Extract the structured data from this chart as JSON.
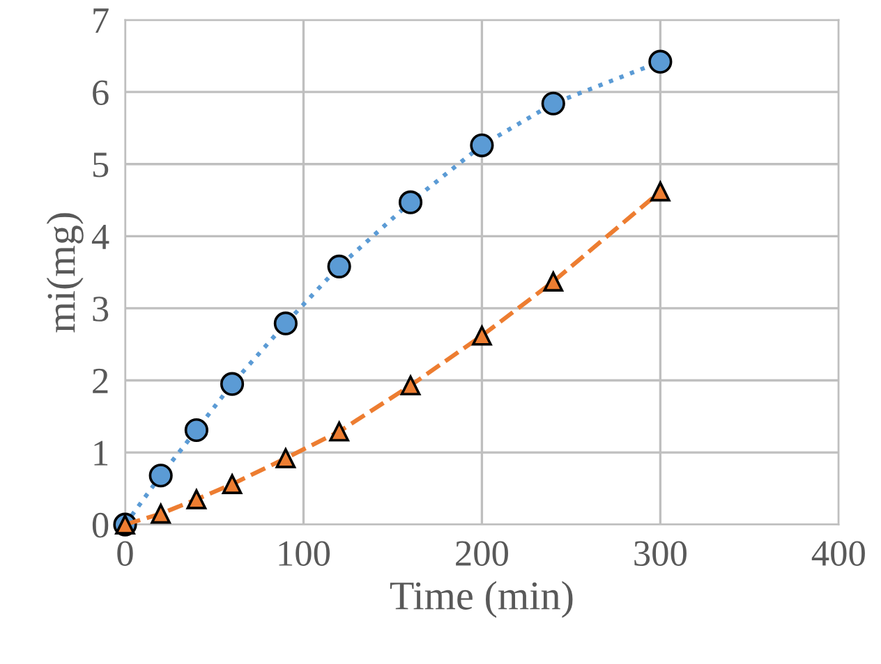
{
  "chart_data": {
    "type": "line",
    "xlabel": "Time (min)",
    "ylabel": "mi(mg)",
    "xlim": [
      0,
      400
    ],
    "ylim": [
      0,
      7
    ],
    "xticks": [
      0,
      100,
      200,
      300,
      400
    ],
    "yticks": [
      0,
      1,
      2,
      3,
      4,
      5,
      6,
      7
    ],
    "grid": true,
    "series": [
      {
        "color": "#5b9bd5",
        "marker": "circle",
        "line_style": "dotted",
        "x": [
          0,
          20,
          40,
          60,
          90,
          120,
          160,
          200,
          240,
          300
        ],
        "values": [
          0,
          0.68,
          1.31,
          1.95,
          2.79,
          3.58,
          4.47,
          5.26,
          5.84,
          6.42
        ]
      },
      {
        "color": "#ed7d31",
        "marker": "triangle",
        "line_style": "dashed",
        "x": [
          0,
          20,
          40,
          60,
          90,
          120,
          160,
          200,
          240,
          300
        ],
        "values": [
          0,
          0.15,
          0.35,
          0.56,
          0.92,
          1.29,
          1.93,
          2.62,
          3.37,
          4.62
        ]
      }
    ]
  }
}
